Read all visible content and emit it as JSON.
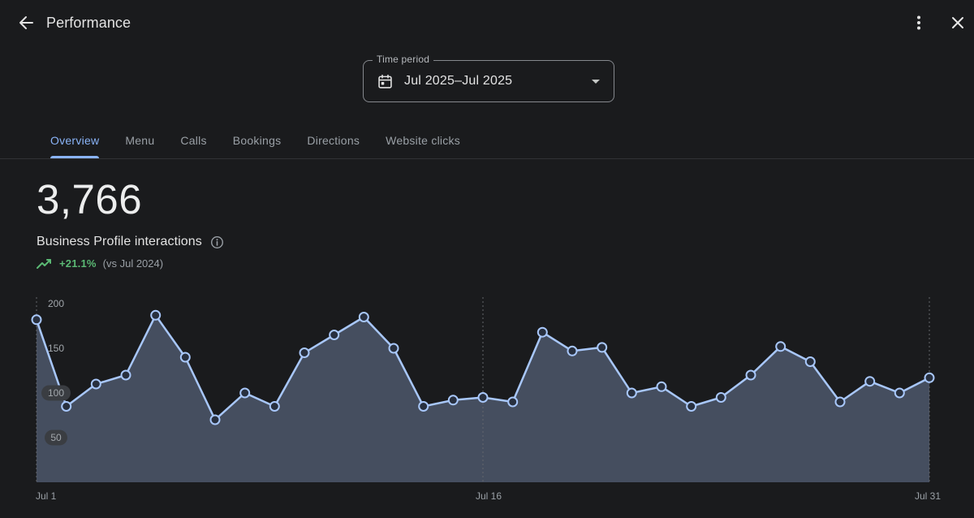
{
  "colors": {
    "background": "#1a1b1d",
    "accent_blue": "#8ab4f8",
    "chart_line": "#a8c7fa",
    "chart_fill": "rgba(168,199,250,0.30)",
    "chart_marker_fill": "#28303f",
    "positive_green": "#5bb974",
    "text_primary": "#e3e3e3",
    "text_secondary": "#9aa0a6"
  },
  "header": {
    "title": "Performance"
  },
  "time_period": {
    "label": "Time period",
    "value": "Jul 2025–Jul 2025"
  },
  "tabs": [
    {
      "label": "Overview",
      "active": true
    },
    {
      "label": "Menu",
      "active": false
    },
    {
      "label": "Calls",
      "active": false
    },
    {
      "label": "Bookings",
      "active": false
    },
    {
      "label": "Directions",
      "active": false
    },
    {
      "label": "Website clicks",
      "active": false
    }
  ],
  "metric": {
    "value": "3,766",
    "label": "Business Profile interactions",
    "delta": "+21.1%",
    "delta_context": "(vs Jul 2024)"
  },
  "chart_data": {
    "type": "area",
    "title": "Business Profile interactions per day",
    "x": [
      "Jul 1",
      "Jul 2",
      "Jul 3",
      "Jul 4",
      "Jul 5",
      "Jul 6",
      "Jul 7",
      "Jul 8",
      "Jul 9",
      "Jul 10",
      "Jul 11",
      "Jul 12",
      "Jul 13",
      "Jul 14",
      "Jul 15",
      "Jul 16",
      "Jul 17",
      "Jul 18",
      "Jul 19",
      "Jul 20",
      "Jul 21",
      "Jul 22",
      "Jul 23",
      "Jul 24",
      "Jul 25",
      "Jul 26",
      "Jul 27",
      "Jul 28",
      "Jul 29",
      "Jul 30",
      "Jul 31"
    ],
    "values": [
      182,
      85,
      110,
      120,
      187,
      140,
      70,
      100,
      85,
      145,
      165,
      185,
      150,
      85,
      92,
      95,
      90,
      168,
      147,
      151,
      100,
      107,
      85,
      95,
      120,
      152,
      135,
      90,
      113,
      100,
      117
    ],
    "total": 3766,
    "ylim": [
      0,
      210
    ],
    "y_ticks": [
      200,
      150,
      100,
      50
    ],
    "x_tick_labels": [
      "Jul 1",
      "Jul 16",
      "Jul 31"
    ],
    "dashed_guides_days": [
      1,
      16,
      31
    ],
    "grid": "dashed-vertical-guides-only",
    "legend": "none"
  }
}
